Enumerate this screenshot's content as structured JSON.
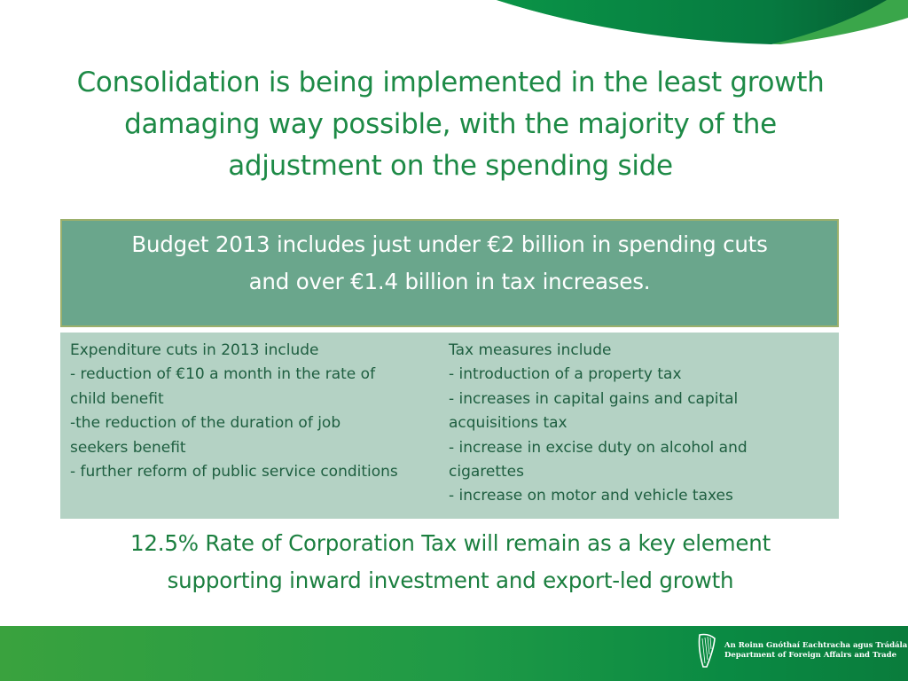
{
  "title": "Consolidation is being implemented in the least growth damaging way possible, with the majority of the adjustment on the spending side",
  "summary": {
    "line1": "Budget 2013 includes just under €2 billion in spending cuts",
    "line2": "and over €1.4 billion in tax increases."
  },
  "expenditure": {
    "lines": [
      "Expenditure cuts in 2013 include",
      "- reduction of €10 a month in the rate of",
      "child benefit",
      "-the reduction of the duration of job",
      "seekers benefit",
      "- further reform of public service conditions"
    ]
  },
  "tax": {
    "lines": [
      "Tax measures include",
      "- introduction of a property tax",
      "- increases in capital gains and capital",
      "acquisitions tax",
      "- increase in excise duty on alcohol and",
      "cigarettes",
      "- increase on motor and vehicle taxes"
    ]
  },
  "conclusion": {
    "line1": "12.5% Rate of Corporation Tax will remain as a key element",
    "line2": "supporting inward investment and export-led growth"
  },
  "footer": {
    "logo_irish": "An Roinn Gnóthaí Eachtracha agus Trádála",
    "logo_english": "Department of Foreign Affairs and Trade"
  },
  "colors": {
    "title": "#1d8a46",
    "summary_bg": "#6aa68c",
    "detail_bg": "#b4d2c4",
    "footer_green": "#1f9a46"
  }
}
